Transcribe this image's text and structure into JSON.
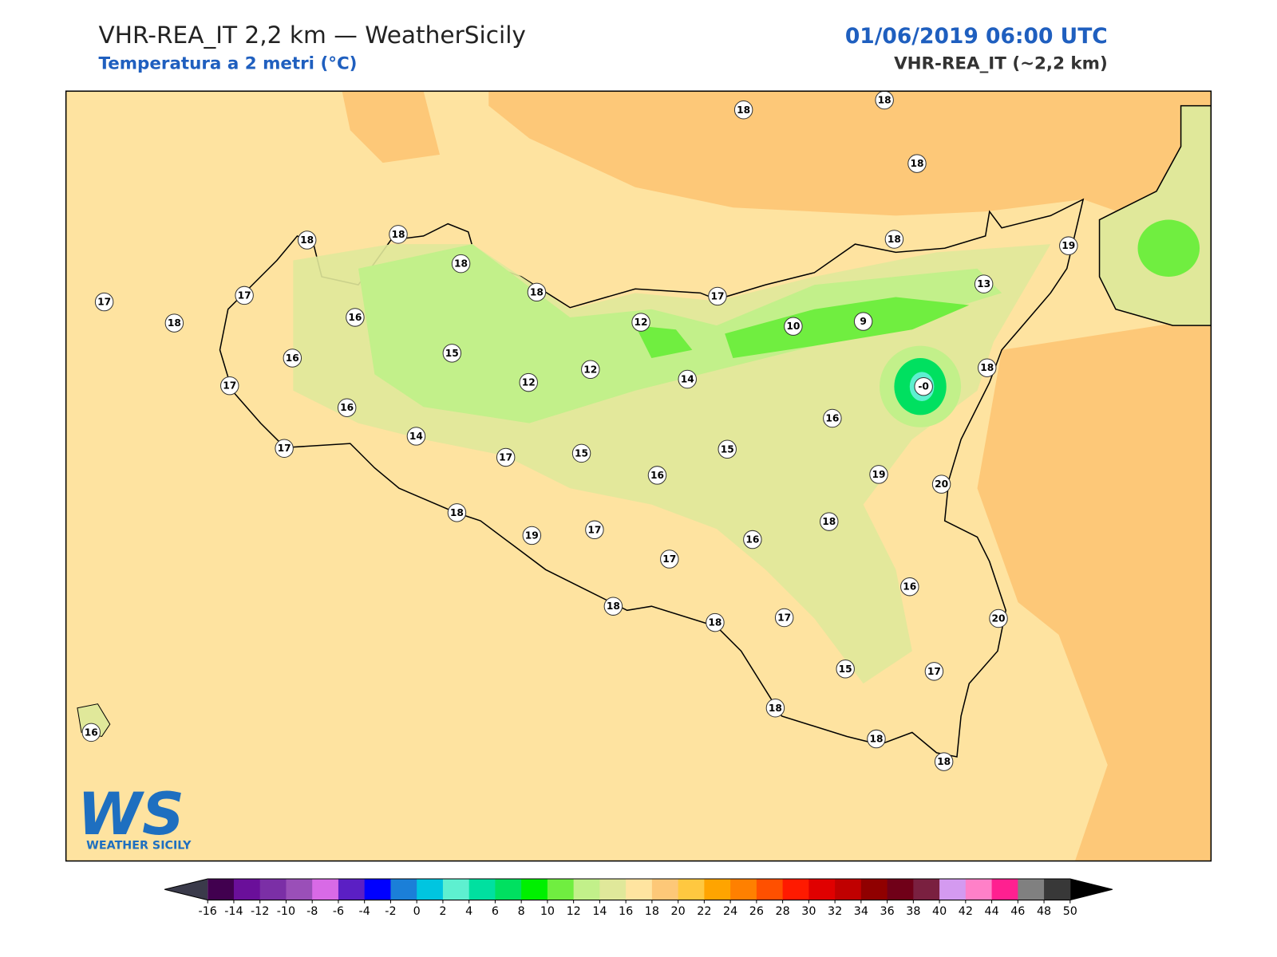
{
  "header": {
    "title": "VHR-REA_IT 2,2 km — WeatherSicily",
    "subtitle": "Temperatura a 2 metri (°C)",
    "datetime": "01/06/2019 06:00 UTC",
    "model": "VHR-REA_IT (~2,2 km)"
  },
  "map": {
    "stations": [
      "18",
      "18",
      "18",
      "18",
      "18",
      "18",
      "18",
      "17",
      "17",
      "18",
      "16",
      "16",
      "17",
      "16",
      "17",
      "14",
      "15",
      "12",
      "12",
      "12",
      "14",
      "17",
      "10",
      "9",
      "18",
      "13",
      "19",
      "-0",
      "18",
      "16",
      "19",
      "20",
      "15",
      "15",
      "17",
      "16",
      "18",
      "19",
      "17",
      "17",
      "16",
      "18",
      "16",
      "20",
      "17",
      "18",
      "18",
      "15",
      "17",
      "18",
      "18",
      "18",
      "16"
    ]
  },
  "colorbar": {
    "ticks": [
      -16,
      -14,
      -12,
      -10,
      -8,
      -6,
      -4,
      -2,
      0,
      2,
      4,
      6,
      8,
      10,
      12,
      14,
      16,
      18,
      20,
      22,
      24,
      26,
      28,
      30,
      32,
      34,
      36,
      38,
      40,
      42,
      44,
      46,
      48,
      50
    ],
    "colors": [
      "#41004f",
      "#6a0f9a",
      "#7b2fa6",
      "#9a4fb8",
      "#d86ae6",
      "#5b1fc4",
      "#0000ff",
      "#1b7fd8",
      "#00c5e0",
      "#5ef0d0",
      "#00e0a0",
      "#00e060",
      "#00f000",
      "#70ee40",
      "#c2f08a",
      "#e0e89a",
      "#ffe4a0",
      "#fdc878",
      "#ffc840",
      "#ffa400",
      "#ff8000",
      "#ff5000",
      "#ff1a00",
      "#e00000",
      "#c00000",
      "#900000",
      "#700018",
      "#7a2040",
      "#d49af0",
      "#ff80c8",
      "#ff2090",
      "#808080",
      "#383838"
    ],
    "under_color": "#3a3a4a",
    "over_color": "#000000"
  },
  "logo": {
    "mark": "WS",
    "name": "WEATHER SICILY"
  }
}
